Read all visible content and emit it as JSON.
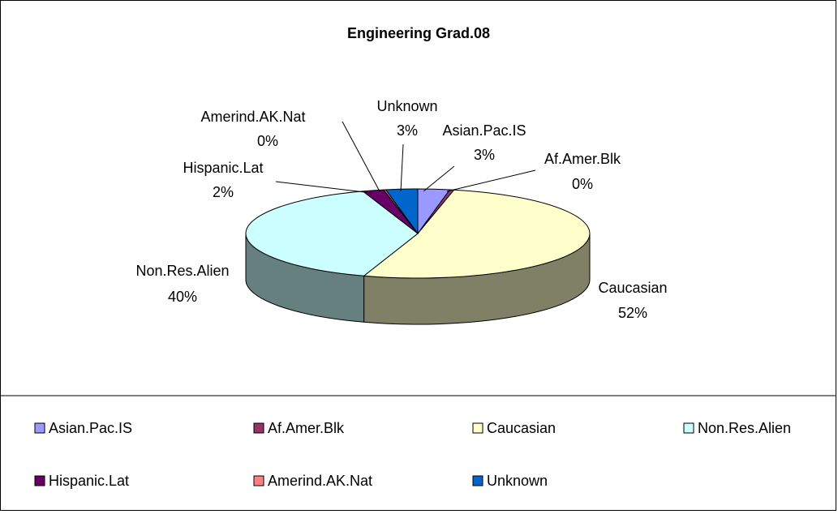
{
  "chart_data": {
    "type": "pie3d",
    "title": "Engineering Grad.08",
    "categories": [
      "Asian.Pac.IS",
      "Af.Amer.Blk",
      "Caucasian",
      "Non.Res.Alien",
      "Hispanic.Lat",
      "Amerind.AK.Nat",
      "Unknown"
    ],
    "values": [
      3,
      0.4,
      52,
      40,
      2,
      0.2,
      3
    ],
    "value_labels": [
      "3%",
      "0%",
      "52%",
      "40%",
      "2%",
      "0%",
      "3%"
    ],
    "colors": [
      "#9999ff",
      "#993366",
      "#ffffcc",
      "#ccffff",
      "#660066",
      "#ff8080",
      "#0066cc"
    ],
    "legend": "bottom"
  }
}
